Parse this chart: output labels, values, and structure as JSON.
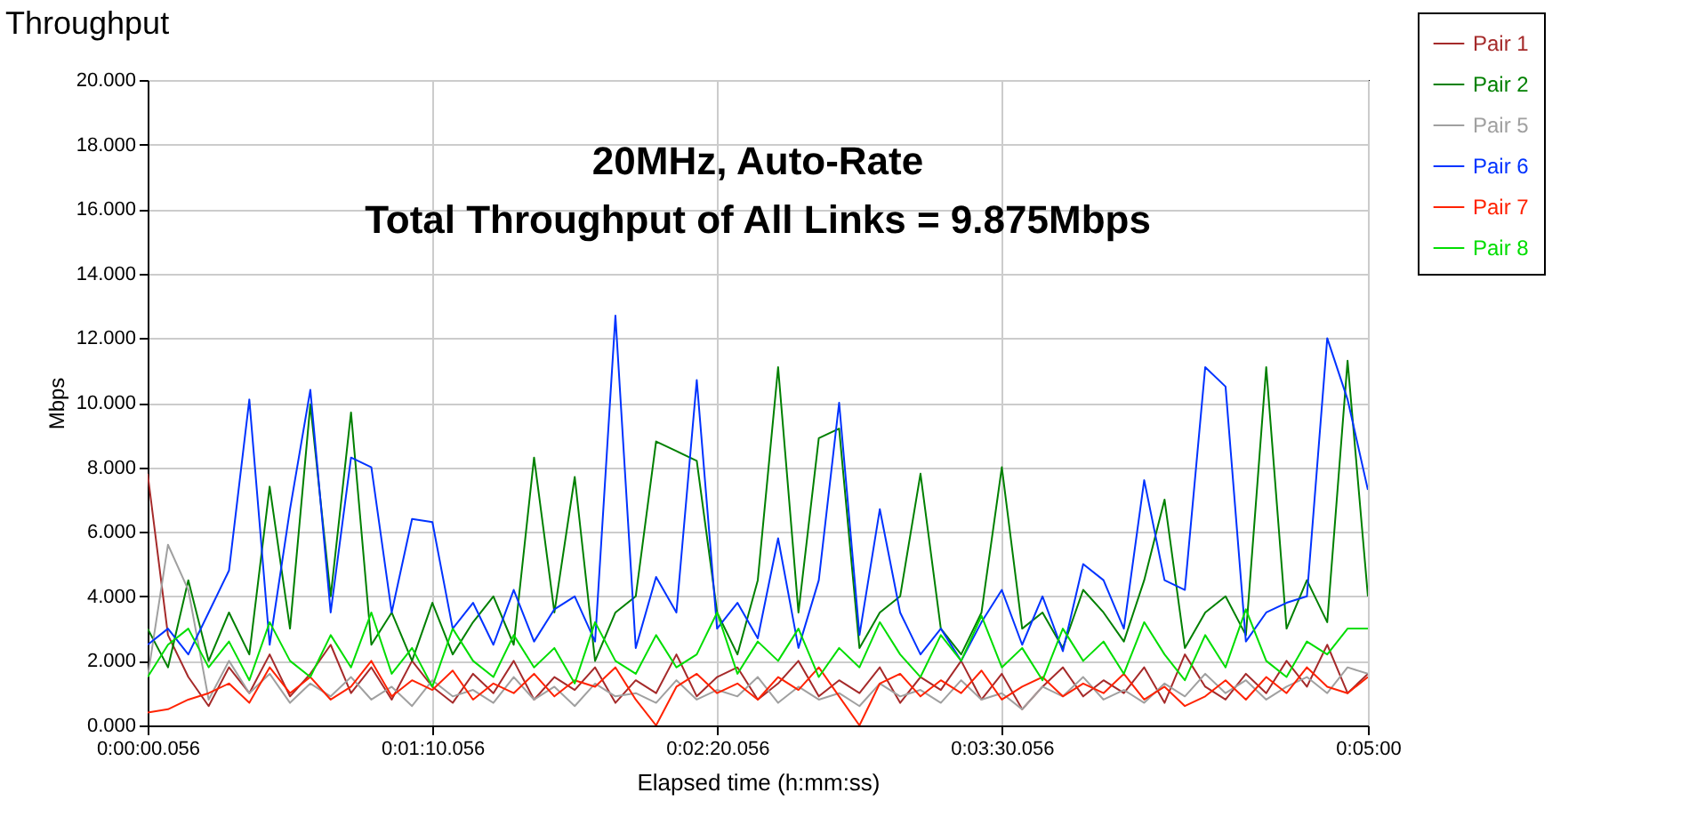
{
  "chart_data": {
    "type": "line",
    "title": "Throughput",
    "xlabel": "Elapsed time (h:mm:ss)",
    "ylabel": "Mbps",
    "annotations": [
      "20MHz, Auto-Rate",
      "Total Throughput of All Links = 9.875Mbps"
    ],
    "categories": [
      "0:00:00.056",
      null,
      null,
      null,
      null,
      null,
      null,
      null,
      null,
      null,
      null,
      null,
      null,
      null,
      "0:01:10.056",
      null,
      null,
      null,
      null,
      null,
      null,
      null,
      null,
      null,
      null,
      null,
      null,
      null,
      "0:02:20.056",
      null,
      null,
      null,
      null,
      null,
      null,
      null,
      null,
      null,
      null,
      null,
      null,
      null,
      "0:03:30.056",
      null,
      null,
      null,
      null,
      null,
      null,
      null,
      null,
      null,
      null,
      null,
      null,
      null,
      null,
      null,
      null,
      null,
      "0:05:00"
    ],
    "ylim": [
      0,
      20
    ],
    "yticks": [
      {
        "value": 0,
        "label": "0.000"
      },
      {
        "value": 2,
        "label": "2.000"
      },
      {
        "value": 4,
        "label": "4.000"
      },
      {
        "value": 6,
        "label": "6.000"
      },
      {
        "value": 8,
        "label": "8.000"
      },
      {
        "value": 10,
        "label": "10.000"
      },
      {
        "value": 12,
        "label": "12.000"
      },
      {
        "value": 14,
        "label": "14.000"
      },
      {
        "value": 16,
        "label": "16.000"
      },
      {
        "value": 18,
        "label": "18.000"
      },
      {
        "value": 20,
        "label": "20.000"
      }
    ],
    "grid": true,
    "legend": "right",
    "series": [
      {
        "name": "Pair 1",
        "color": "#a52a2a",
        "values": [
          7.8,
          2.8,
          1.5,
          0.6,
          1.8,
          1.0,
          2.2,
          0.9,
          1.6,
          2.5,
          1.0,
          1.8,
          0.8,
          2.0,
          1.2,
          0.7,
          1.6,
          1.0,
          2.0,
          0.8,
          1.5,
          1.1,
          1.8,
          0.7,
          1.4,
          1.0,
          2.2,
          0.9,
          1.5,
          1.8,
          0.8,
          1.3,
          2.0,
          0.9,
          1.4,
          1.0,
          1.8,
          0.7,
          1.5,
          1.1,
          2.0,
          0.8,
          1.6,
          0.5,
          1.2,
          1.8,
          0.9,
          1.4,
          1.0,
          1.8,
          0.7,
          2.2,
          1.2,
          0.8,
          1.6,
          1.0,
          2.0,
          1.2,
          2.5,
          1.0,
          1.6
        ]
      },
      {
        "name": "Pair 2",
        "color": "#008000",
        "values": [
          3.0,
          1.8,
          4.5,
          2.0,
          3.5,
          2.2,
          7.4,
          3.0,
          9.95,
          4.0,
          9.7,
          2.5,
          3.5,
          2.0,
          3.8,
          2.2,
          3.2,
          4.0,
          2.5,
          8.3,
          3.5,
          7.7,
          2.0,
          3.5,
          4.0,
          8.8,
          8.5,
          8.2,
          3.5,
          2.2,
          4.5,
          11.1,
          3.5,
          8.9,
          9.2,
          2.4,
          3.5,
          4.0,
          7.8,
          3.0,
          2.2,
          3.5,
          8.0,
          3.0,
          3.5,
          2.4,
          4.2,
          3.5,
          2.6,
          4.5,
          7.0,
          2.4,
          3.5,
          4.0,
          2.8,
          11.1,
          3.0,
          4.5,
          3.2,
          11.3,
          4.0
        ]
      },
      {
        "name": "Pair 5",
        "color": "#a0a0a0",
        "values": [
          1.5,
          5.6,
          4.2,
          0.8,
          2.0,
          1.0,
          1.6,
          0.7,
          1.3,
          0.9,
          1.5,
          0.8,
          1.2,
          0.6,
          1.4,
          0.9,
          1.1,
          0.7,
          1.5,
          0.8,
          1.2,
          0.6,
          1.3,
          0.9,
          1.0,
          0.7,
          1.4,
          0.8,
          1.1,
          0.9,
          1.5,
          0.7,
          1.2,
          0.8,
          1.0,
          0.6,
          1.3,
          0.9,
          1.1,
          0.7,
          1.4,
          0.8,
          1.0,
          0.5,
          1.2,
          0.9,
          1.5,
          0.8,
          1.1,
          0.7,
          1.3,
          0.9,
          1.6,
          1.0,
          1.4,
          0.8,
          1.2,
          1.5,
          1.0,
          1.8,
          1.6
        ]
      },
      {
        "name": "Pair 6",
        "color": "#0033ff",
        "values": [
          2.5,
          3.0,
          2.2,
          3.5,
          4.8,
          10.1,
          2.5,
          6.7,
          10.4,
          3.5,
          8.3,
          8.0,
          3.5,
          6.4,
          6.3,
          3.0,
          3.8,
          2.5,
          4.2,
          2.6,
          3.6,
          4.0,
          2.6,
          12.7,
          2.4,
          4.6,
          3.5,
          10.7,
          3.0,
          3.8,
          2.7,
          5.8,
          2.4,
          4.5,
          10.0,
          2.8,
          6.7,
          3.5,
          2.2,
          3.0,
          2.0,
          3.2,
          4.2,
          2.5,
          4.0,
          2.3,
          5.0,
          4.5,
          3.0,
          7.6,
          4.5,
          4.2,
          11.1,
          10.5,
          2.6,
          3.5,
          3.8,
          4.0,
          12.0,
          10.1,
          7.3
        ]
      },
      {
        "name": "Pair 7",
        "color": "#ff2200",
        "values": [
          0.4,
          0.5,
          0.8,
          1.0,
          1.3,
          0.7,
          1.8,
          1.0,
          1.5,
          0.8,
          1.2,
          2.0,
          0.9,
          1.4,
          1.1,
          1.7,
          0.8,
          1.3,
          1.0,
          1.6,
          0.9,
          1.4,
          1.2,
          1.8,
          0.8,
          0.0,
          1.2,
          1.6,
          1.0,
          1.3,
          0.8,
          1.5,
          1.1,
          1.8,
          0.9,
          0.0,
          1.3,
          1.6,
          0.9,
          1.4,
          1.0,
          1.7,
          0.8,
          1.2,
          1.5,
          0.9,
          1.3,
          1.0,
          1.6,
          0.8,
          1.2,
          0.6,
          0.9,
          1.4,
          0.8,
          1.5,
          1.0,
          1.8,
          1.2,
          1.0,
          1.5
        ]
      },
      {
        "name": "Pair 8",
        "color": "#00dd00",
        "values": [
          1.5,
          2.5,
          3.0,
          1.8,
          2.6,
          1.4,
          3.2,
          2.0,
          1.5,
          2.8,
          1.8,
          3.5,
          1.6,
          2.4,
          1.2,
          3.0,
          2.0,
          1.5,
          2.8,
          1.8,
          2.4,
          1.3,
          3.2,
          2.0,
          1.6,
          2.8,
          1.8,
          2.2,
          3.5,
          1.6,
          2.6,
          2.0,
          3.0,
          1.5,
          2.4,
          1.8,
          3.2,
          2.2,
          1.5,
          2.8,
          2.0,
          3.4,
          1.8,
          2.4,
          1.4,
          3.0,
          2.0,
          2.6,
          1.6,
          3.2,
          2.2,
          1.4,
          2.8,
          1.8,
          3.6,
          2.0,
          1.5,
          2.6,
          2.2,
          3.0,
          3.0
        ]
      }
    ]
  }
}
